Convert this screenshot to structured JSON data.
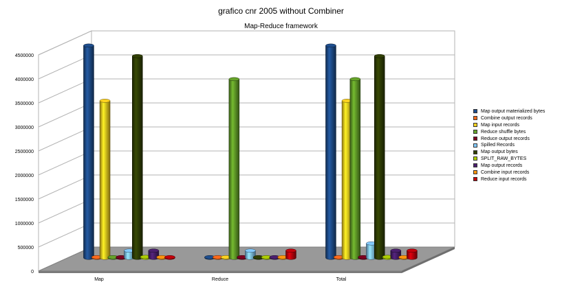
{
  "chart_data": {
    "type": "bar",
    "title": "grafico cnr 2005 without Combiner",
    "subtitle": "Map-Reduce framework",
    "categories": [
      "Map",
      "Reduce",
      "Total"
    ],
    "ylim": [
      0,
      4500000
    ],
    "yticks": [
      0,
      500000,
      1000000,
      1500000,
      2000000,
      2500000,
      3000000,
      3500000,
      4000000,
      4500000
    ],
    "grid": true,
    "legend_position": "right",
    "series": [
      {
        "name": "Map output materialized bytes",
        "color": "#1f4f8f",
        "values": [
          4420000,
          0,
          4420000
        ]
      },
      {
        "name": "Combine output records",
        "color": "#ff6a1a",
        "values": [
          0,
          0,
          0
        ]
      },
      {
        "name": "Map input records",
        "color": "#ffd320",
        "values": [
          3270000,
          0,
          3270000
        ]
      },
      {
        "name": "Reduce shuffle bytes",
        "color": "#66a32a",
        "values": [
          0,
          3720000,
          3720000
        ]
      },
      {
        "name": "Reduce output records",
        "color": "#7e0021",
        "values": [
          0,
          15000,
          15000
        ]
      },
      {
        "name": "Spilled Records",
        "color": "#83caff",
        "values": [
          150000,
          150000,
          300000
        ]
      },
      {
        "name": "Map output bytes",
        "color": "#314004",
        "values": [
          4200000,
          0,
          4200000
        ]
      },
      {
        "name": "SPLIT_RAW_BYTES",
        "color": "#aecf00",
        "values": [
          20000,
          0,
          20000
        ]
      },
      {
        "name": "Map output records",
        "color": "#4b1f6f",
        "values": [
          150000,
          0,
          150000
        ]
      },
      {
        "name": "Combine input records",
        "color": "#ff950e",
        "values": [
          0,
          0,
          0
        ]
      },
      {
        "name": "Reduce input records",
        "color": "#c5000b",
        "values": [
          0,
          150000,
          150000
        ]
      }
    ]
  }
}
